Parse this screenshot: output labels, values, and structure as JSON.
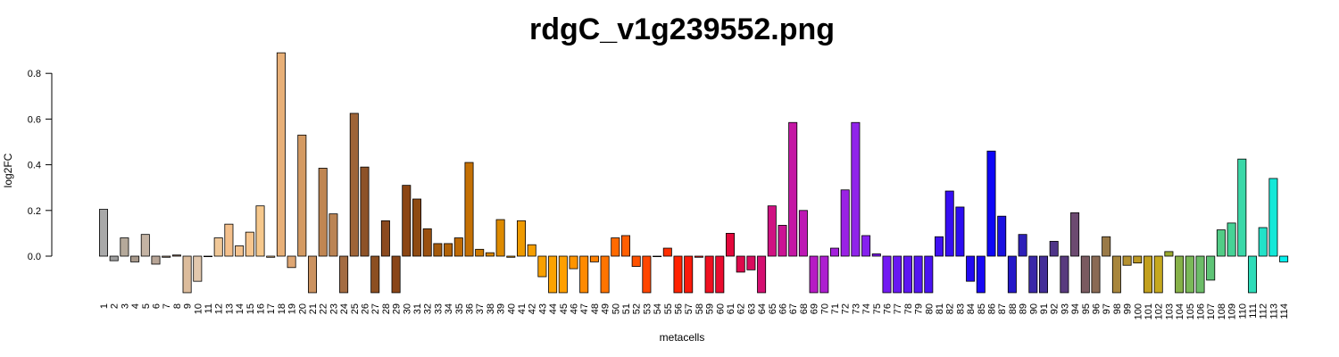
{
  "chart_data": {
    "type": "bar",
    "title": "rdgC_v1g239552.png",
    "xlabel": "metacells",
    "ylabel": "log2FC",
    "ylim": [
      -0.16,
      0.9
    ],
    "yticks": [
      0.0,
      0.2,
      0.4,
      0.6,
      0.8
    ],
    "ytick_labels": [
      "0.0",
      "0.2",
      "0.4",
      "0.6",
      "0.8"
    ],
    "grid": false,
    "legend": "none",
    "categories": [
      "1",
      "2",
      "3",
      "4",
      "5",
      "6",
      "7",
      "8",
      "9",
      "10",
      "11",
      "12",
      "13",
      "14",
      "15",
      "16",
      "17",
      "18",
      "19",
      "20",
      "21",
      "22",
      "23",
      "24",
      "25",
      "26",
      "27",
      "28",
      "29",
      "30",
      "31",
      "32",
      "33",
      "34",
      "35",
      "36",
      "37",
      "38",
      "39",
      "40",
      "41",
      "42",
      "43",
      "44",
      "45",
      "46",
      "47",
      "48",
      "49",
      "50",
      "51",
      "52",
      "53",
      "54",
      "55",
      "56",
      "57",
      "58",
      "59",
      "60",
      "61",
      "62",
      "63",
      "64",
      "65",
      "66",
      "67",
      "68",
      "69",
      "70",
      "71",
      "72",
      "73",
      "74",
      "75",
      "76",
      "77",
      "78",
      "79",
      "80",
      "81",
      "82",
      "83",
      "84",
      "85",
      "86",
      "87",
      "88",
      "89",
      "90",
      "91",
      "92",
      "93",
      "94",
      "95",
      "96",
      "97",
      "98",
      "99",
      "100",
      "101",
      "102",
      "103",
      "104",
      "105",
      "106",
      "107",
      "108",
      "109",
      "110",
      "111",
      "112",
      "113",
      "114"
    ],
    "values": [
      0.205,
      -0.02,
      0.08,
      -0.025,
      0.095,
      -0.035,
      -0.005,
      0.005,
      -0.16,
      -0.11,
      0.0,
      0.08,
      0.14,
      0.045,
      0.105,
      0.22,
      -0.005,
      0.89,
      -0.05,
      0.53,
      -0.16,
      0.385,
      0.185,
      -0.16,
      0.625,
      0.39,
      -0.16,
      0.155,
      -0.16,
      0.31,
      0.25,
      0.12,
      0.055,
      0.055,
      0.08,
      0.41,
      0.03,
      0.015,
      0.16,
      -0.005,
      0.155,
      0.05,
      -0.09,
      -0.16,
      -0.16,
      -0.055,
      -0.16,
      -0.025,
      -0.16,
      0.08,
      0.09,
      -0.045,
      -0.16,
      0.0,
      0.035,
      -0.16,
      -0.16,
      -0.005,
      -0.16,
      -0.16,
      0.1,
      -0.07,
      -0.06,
      -0.16,
      0.22,
      0.135,
      0.585,
      0.2,
      -0.16,
      -0.16,
      0.035,
      0.29,
      0.585,
      0.09,
      0.01,
      -0.16,
      -0.16,
      -0.16,
      -0.16,
      -0.16,
      0.085,
      0.285,
      0.215,
      -0.11,
      -0.16,
      0.46,
      0.175,
      -0.16,
      0.095,
      -0.16,
      -0.16,
      0.065,
      -0.16,
      0.19,
      -0.16,
      -0.16,
      0.085,
      -0.16,
      -0.04,
      -0.03,
      -0.16,
      -0.16,
      0.02,
      -0.16,
      -0.16,
      -0.16,
      -0.105,
      0.115,
      0.145,
      0.425,
      -0.16,
      0.125,
      0.34,
      -0.025
    ],
    "colors": [
      "#a9a9a9",
      "#9e9e9e",
      "#b5a99a",
      "#a8998b",
      "#c4b3a3",
      "#b8a596",
      "#a68d7a",
      "#8a6b57",
      "#dcbc9c",
      "#e2c8ae",
      "#d6b89a",
      "#f0c898",
      "#f4c08c",
      "#f3c28e",
      "#f7c68f",
      "#f6c88c",
      "#f5c48a",
      "#e8b078",
      "#dea673",
      "#d49a62",
      "#cb9260",
      "#c08652",
      "#bb8454",
      "#a46c42",
      "#9e6438",
      "#8d5228",
      "#8c4f22",
      "#8b4a1f",
      "#8a4618",
      "#8b4513",
      "#8e4a12",
      "#9a5010",
      "#a45a0c",
      "#b06208",
      "#be6a06",
      "#c47004",
      "#cc7a04",
      "#d68402",
      "#dd8a00",
      "#e69200",
      "#ee9a00",
      "#f59e00",
      "#f8a000",
      "#fca200",
      "#ff9f00",
      "#ff9400",
      "#ff8a00",
      "#ff8000",
      "#ff7400",
      "#ff6a00",
      "#ff5e00",
      "#ff5200",
      "#ff4600",
      "#ff3a00",
      "#ff2e00",
      "#ff2200",
      "#fb1a0a",
      "#f51414",
      "#ef1020",
      "#e90c2e",
      "#e3083c",
      "#dd0a4c",
      "#d80c5e",
      "#d40e70",
      "#cf1282",
      "#ca1494",
      "#c416a4",
      "#bd18b4",
      "#b61ac4",
      "#ad1ed0",
      "#a420dc",
      "#9a22e4",
      "#9024ea",
      "#8620ee",
      "#7c1cf0",
      "#721af2",
      "#6818f2",
      "#5e16f2",
      "#5414f2",
      "#4a12f2",
      "#4010f2",
      "#360ef2",
      "#2c0cf2",
      "#220af2",
      "#1808f4",
      "#0e06f6",
      "#1a10e0",
      "#2418c8",
      "#2e20b8",
      "#3a28a8",
      "#442e98",
      "#4e3488",
      "#583a7e",
      "#6c4a70",
      "#7a5a60",
      "#8a6a54",
      "#9a7a48",
      "#a8863c",
      "#b49030",
      "#bc9824",
      "#c2a01e",
      "#c6a81e",
      "#9aa82e",
      "#86b048",
      "#7ab858",
      "#6cbc68",
      "#5ec476",
      "#52cc86",
      "#46d296",
      "#3ad8a8",
      "#2edcb8",
      "#22e2c8",
      "#14e8d8",
      "#06f0ee"
    ]
  }
}
